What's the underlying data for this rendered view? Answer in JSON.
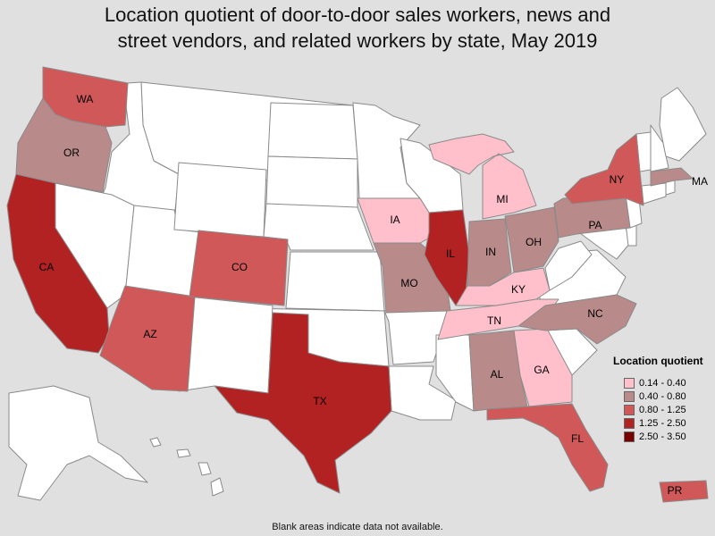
{
  "title_lines": [
    "Location quotient of door-to-door sales workers, news and",
    "street vendors, and related workers by state, May 2019"
  ],
  "legend": {
    "title": "Location quotient",
    "items": [
      {
        "label": "0.14 - 0.40",
        "color": "#ffc0cb"
      },
      {
        "label": "0.40 - 0.80",
        "color": "#b98a8a"
      },
      {
        "label": "0.80 - 1.25",
        "color": "#d05858"
      },
      {
        "label": "1.25 - 2.50",
        "color": "#b22222"
      },
      {
        "label": "2.50 - 3.50",
        "color": "#7a0000"
      }
    ]
  },
  "no_data_color": "#ffffff",
  "note": "Blank areas indicate data not available.",
  "states": [
    {
      "abbr": "WA",
      "class": "0.80 - 1.25"
    },
    {
      "abbr": "OR",
      "class": "0.40 - 0.80"
    },
    {
      "abbr": "CA",
      "class": "1.25 - 2.50"
    },
    {
      "abbr": "AZ",
      "class": "0.80 - 1.25"
    },
    {
      "abbr": "CO",
      "class": "0.80 - 1.25"
    },
    {
      "abbr": "TX",
      "class": "1.25 - 2.50"
    },
    {
      "abbr": "IA",
      "class": "0.14 - 0.40"
    },
    {
      "abbr": "MO",
      "class": "0.40 - 0.80"
    },
    {
      "abbr": "IL",
      "class": "1.25 - 2.50"
    },
    {
      "abbr": "IN",
      "class": "0.40 - 0.80"
    },
    {
      "abbr": "OH",
      "class": "0.40 - 0.80"
    },
    {
      "abbr": "MI",
      "class": "0.14 - 0.40"
    },
    {
      "abbr": "KY",
      "class": "0.14 - 0.40"
    },
    {
      "abbr": "TN",
      "class": "0.14 - 0.40"
    },
    {
      "abbr": "AL",
      "class": "0.40 - 0.80"
    },
    {
      "abbr": "GA",
      "class": "0.14 - 0.40"
    },
    {
      "abbr": "FL",
      "class": "0.80 - 1.25"
    },
    {
      "abbr": "NC",
      "class": "0.40 - 0.80"
    },
    {
      "abbr": "PA",
      "class": "0.40 - 0.80"
    },
    {
      "abbr": "NY",
      "class": "0.80 - 1.25"
    },
    {
      "abbr": "MA",
      "class": "0.40 - 0.80"
    },
    {
      "abbr": "PR",
      "class": "0.80 - 1.25"
    }
  ]
}
